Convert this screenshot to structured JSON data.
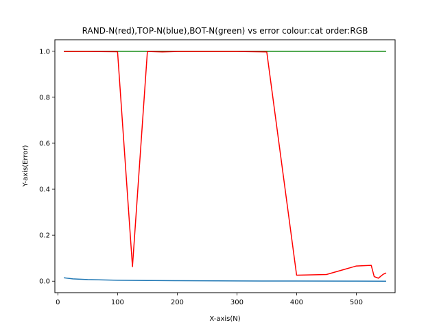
{
  "chart_data": {
    "type": "line",
    "title": "RAND-N(red),TOP-N(blue),BOT-N(green) vs error colour:cat order:RGB",
    "xlabel": "X-axis(N)",
    "ylabel": "Y-axis(Error)",
    "xlim": [
      -5,
      565
    ],
    "ylim": [
      -0.05,
      1.05
    ],
    "xticks": [
      0,
      100,
      200,
      300,
      400,
      500
    ],
    "yticks": [
      0.0,
      0.2,
      0.4,
      0.6,
      0.8,
      1.0
    ],
    "xtick_labels": [
      "0",
      "100",
      "200",
      "300",
      "400",
      "500"
    ],
    "ytick_labels": [
      "0.0",
      "0.2",
      "0.4",
      "0.6",
      "0.8",
      "1.0"
    ],
    "grid": false,
    "series": [
      {
        "name": "BOT-N",
        "color": "#008000",
        "x": [
          10,
          50,
          100,
          150,
          200,
          250,
          300,
          350,
          400,
          450,
          500,
          550
        ],
        "y": [
          1.0,
          1.0,
          1.0,
          1.0,
          1.0,
          1.0,
          1.0,
          1.0,
          1.0,
          1.0,
          1.0,
          1.0
        ]
      },
      {
        "name": "RAND-N",
        "color": "#ff0000",
        "x": [
          10,
          50,
          100,
          125,
          150,
          175,
          200,
          250,
          300,
          350,
          400,
          450,
          500,
          525,
          530,
          537,
          545,
          550
        ],
        "y": [
          0.999,
          0.999,
          0.998,
          0.063,
          0.999,
          0.997,
          0.999,
          0.999,
          0.999,
          0.997,
          0.026,
          0.029,
          0.066,
          0.069,
          0.02,
          0.013,
          0.03,
          0.036
        ]
      },
      {
        "name": "TOP-N",
        "color": "#1f77b4",
        "x": [
          10,
          25,
          50,
          100,
          150,
          200,
          300,
          400,
          500,
          550
        ],
        "y": [
          0.015,
          0.01,
          0.007,
          0.004,
          0.003,
          0.002,
          0.001,
          0.0005,
          0.0002,
          0.0001
        ]
      }
    ]
  }
}
